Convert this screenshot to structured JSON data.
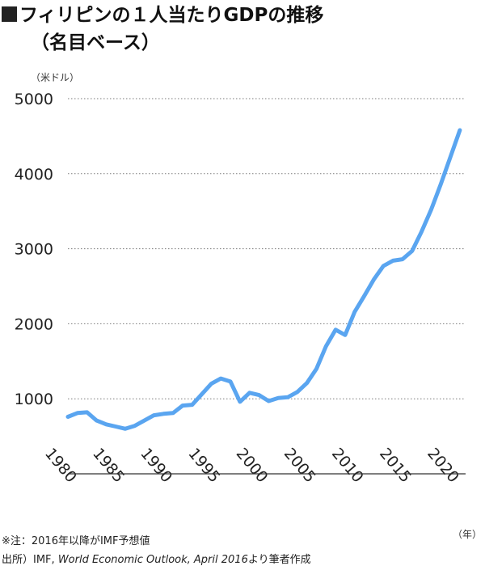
{
  "title": {
    "line1": "フィリピンの１人当たりGDPの推移",
    "line2": "（名目ベース）"
  },
  "colors": {
    "line": "#5aa5f0",
    "grid": "#7a7a7a",
    "axis": "#333333",
    "title_square": "#222222"
  },
  "notes": {
    "note1": "※注：2016年以降がIMF予想値",
    "source_prefix": "出所）IMF,",
    "source_italic": "World Economic Outlook, April 2016",
    "source_suffix": "より筆者作成"
  },
  "chart_data": {
    "type": "line",
    "ylabel": "（米ドル）",
    "xlabel": "（年）",
    "ylim": [
      0,
      5000
    ],
    "yticks": [
      1000,
      2000,
      3000,
      4000,
      5000
    ],
    "xticks": [
      1980,
      1985,
      1990,
      1995,
      2000,
      2005,
      2010,
      2015,
      2020
    ],
    "grid": true,
    "series": [
      {
        "x": [
          1980,
          1981,
          1982,
          1983,
          1984,
          1985,
          1986,
          1987,
          1988,
          1989,
          1990,
          1991,
          1992,
          1993,
          1994,
          1995,
          1996,
          1997,
          1998,
          1999,
          2000,
          2001,
          2002,
          2003,
          2004,
          2005,
          2006,
          2007,
          2008,
          2009,
          2010,
          2011,
          2012,
          2013,
          2014,
          2015,
          2016,
          2017,
          2018,
          2019,
          2020,
          2021
        ],
        "values": [
          760,
          810,
          820,
          710,
          660,
          630,
          600,
          640,
          710,
          780,
          800,
          810,
          910,
          920,
          1060,
          1200,
          1270,
          1230,
          960,
          1080,
          1050,
          970,
          1010,
          1020,
          1090,
          1210,
          1400,
          1700,
          1920,
          1850,
          2160,
          2370,
          2590,
          2770,
          2840,
          2860,
          2970,
          3230,
          3520,
          3860,
          4220,
          4580
        ]
      }
    ]
  }
}
